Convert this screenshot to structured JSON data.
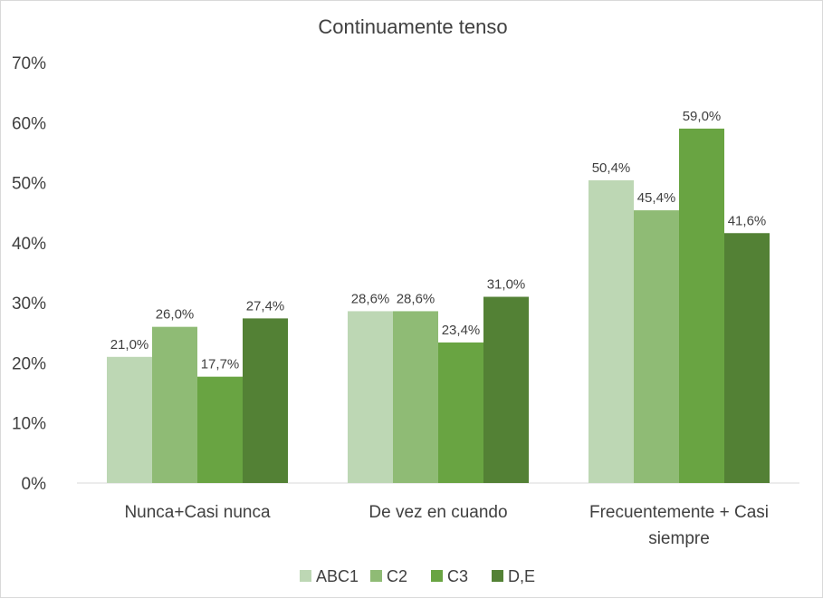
{
  "chart_data": {
    "type": "bar",
    "title": "Continuamente tenso",
    "categories": [
      "Nunca+Casi nunca",
      "De vez en cuando",
      "Frecuentemente + Casi siempre"
    ],
    "series": [
      {
        "name": "ABC1",
        "values": [
          21.0,
          28.6,
          50.4
        ],
        "labels": [
          "21,0%",
          "28,6%",
          "50,4%"
        ],
        "color": "#bdd7b4"
      },
      {
        "name": "C2",
        "values": [
          26.0,
          28.6,
          45.4
        ],
        "labels": [
          "26,0%",
          "28,6%",
          "45,4%"
        ],
        "color": "#8fbb75"
      },
      {
        "name": "C3",
        "values": [
          17.7,
          23.4,
          59.0
        ],
        "labels": [
          "17,7%",
          "23,4%",
          "59,0%"
        ],
        "color": "#69a442"
      },
      {
        "name": "D,E",
        "values": [
          27.4,
          31.0,
          41.6
        ],
        "labels": [
          "27,4%",
          "31,0%",
          "41,6%"
        ],
        "color": "#538135"
      }
    ],
    "yticks": [
      "0%",
      "10%",
      "20%",
      "30%",
      "40%",
      "50%",
      "60%",
      "70%"
    ],
    "ylim": [
      0,
      70
    ],
    "grid": false,
    "legend": "bottom"
  }
}
